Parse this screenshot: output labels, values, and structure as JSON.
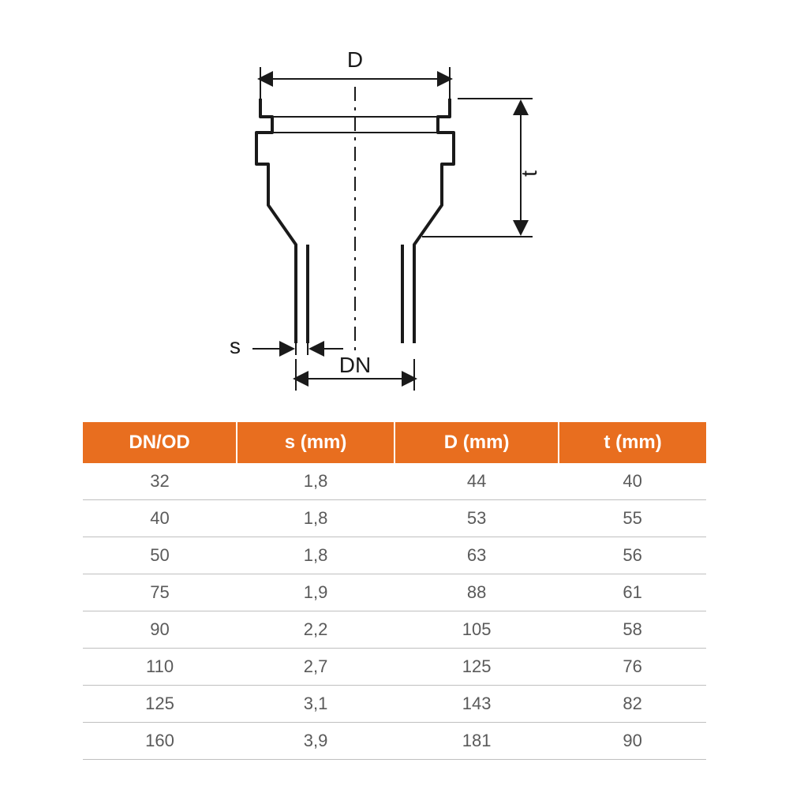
{
  "diagram": {
    "labels": {
      "D": "D",
      "t": "t",
      "s": "s",
      "DN": "DN"
    },
    "stroke_color": "#1a1a1a",
    "centerline_dash": "18 8 4 8",
    "outline_stroke_width": 4,
    "dim_stroke_width": 2
  },
  "table": {
    "header_bg": "#e86e1f",
    "header_fg": "#ffffff",
    "row_border_color": "#bfbfbf",
    "cell_fg": "#5a5a5a",
    "columns": [
      "DN/OD",
      "s (mm)",
      "D (mm)",
      "t (mm)"
    ],
    "rows": [
      [
        "32",
        "1,8",
        "44",
        "40"
      ],
      [
        "40",
        "1,8",
        "53",
        "55"
      ],
      [
        "50",
        "1,8",
        "63",
        "56"
      ],
      [
        "75",
        "1,9",
        "88",
        "61"
      ],
      [
        "90",
        "2,2",
        "105",
        "58"
      ],
      [
        "110",
        "2,7",
        "125",
        "76"
      ],
      [
        "125",
        "3,1",
        "143",
        "82"
      ],
      [
        "160",
        "3,9",
        "181",
        "90"
      ]
    ]
  }
}
